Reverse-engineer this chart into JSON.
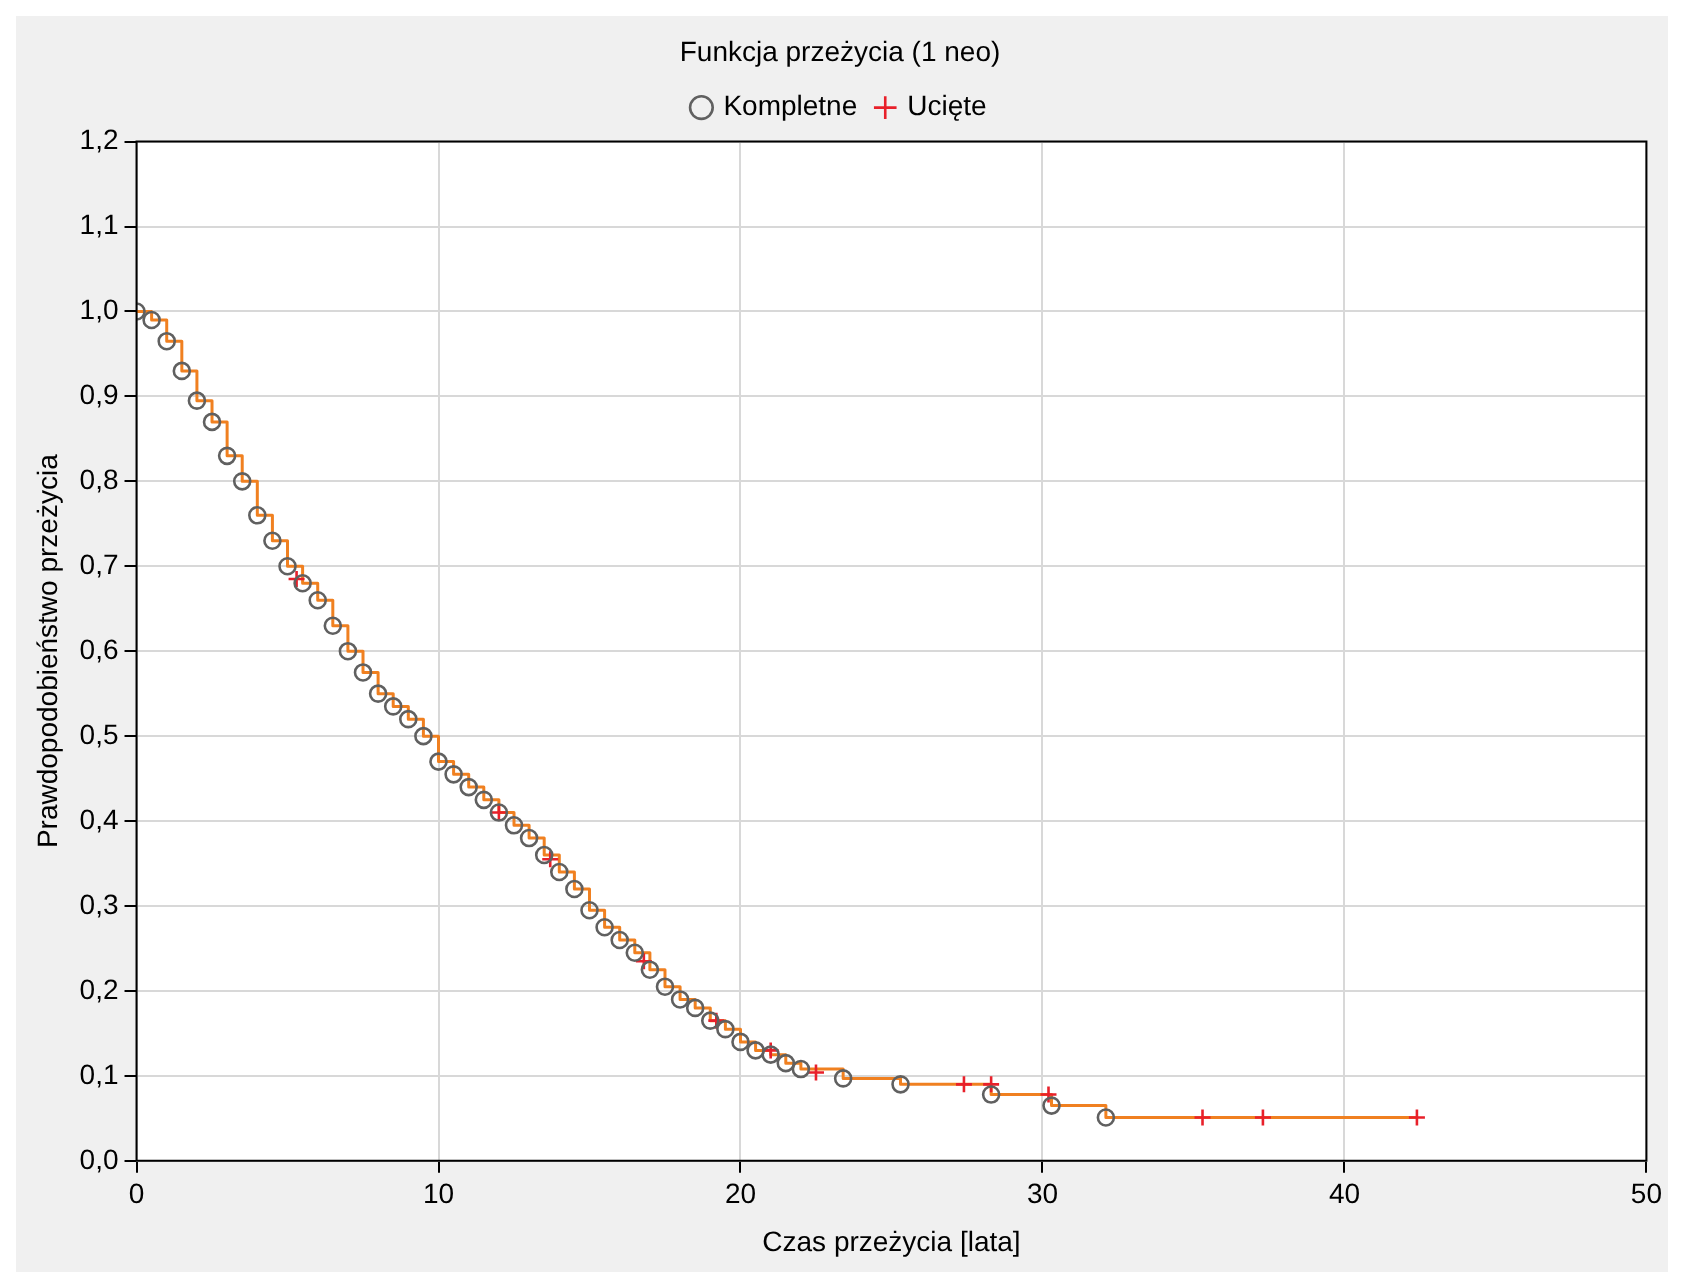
{
  "chart_data": {
    "type": "scatter",
    "title": "Funkcja przeżycia (1 neo)",
    "xlabel": "Czas przeżycia [lata]",
    "ylabel": "Prawdopodobieństwo przeżycia",
    "xlim": [
      0,
      50
    ],
    "xticks": [
      0,
      10,
      20,
      30,
      40,
      50
    ],
    "ylim": [
      0,
      1.2
    ],
    "yticks": [
      {
        "value": 0,
        "label": "0,0"
      },
      {
        "value": 0.1,
        "label": "0,1"
      },
      {
        "value": 0.2,
        "label": "0,2"
      },
      {
        "value": 0.3,
        "label": "0,3"
      },
      {
        "value": 0.4,
        "label": "0,4"
      },
      {
        "value": 0.5,
        "label": "0,5"
      },
      {
        "value": 0.6,
        "label": "0,6"
      },
      {
        "value": 0.7,
        "label": "0,7"
      },
      {
        "value": 0.8,
        "label": "0,8"
      },
      {
        "value": 0.9,
        "label": "0,9"
      },
      {
        "value": 1,
        "label": "1,0"
      },
      {
        "value": 1.1,
        "label": "1,1"
      },
      {
        "value": 1.2,
        "label": "1,2"
      }
    ],
    "grid": true,
    "legend": "top",
    "series": [
      {
        "type": "step",
        "color": "#f08020",
        "marker": "none",
        "x": [
          0,
          0.5,
          1,
          1.5,
          2,
          2.5,
          3,
          3.5,
          4,
          4.5,
          5,
          5.5,
          6,
          6.5,
          7,
          7.5,
          8,
          8.5,
          9,
          9.5,
          10,
          10.5,
          11,
          11.5,
          12,
          12.5,
          13,
          13.5,
          14,
          14.5,
          15,
          15.5,
          16,
          16.5,
          17,
          17.5,
          18,
          18.5,
          19,
          19.5,
          20,
          20.5,
          21,
          21.5,
          22,
          23.4,
          25.3,
          28.3,
          30.3,
          32.1,
          42.4
        ],
        "values": [
          1.0,
          0.99,
          0.965,
          0.93,
          0.895,
          0.87,
          0.83,
          0.8,
          0.76,
          0.73,
          0.7,
          0.68,
          0.66,
          0.63,
          0.6,
          0.575,
          0.55,
          0.535,
          0.52,
          0.5,
          0.47,
          0.455,
          0.44,
          0.425,
          0.41,
          0.395,
          0.38,
          0.36,
          0.34,
          0.32,
          0.295,
          0.275,
          0.26,
          0.245,
          0.225,
          0.205,
          0.19,
          0.18,
          0.165,
          0.155,
          0.14,
          0.13,
          0.125,
          0.115,
          0.108,
          0.097,
          0.09,
          0.078,
          0.065,
          0.051,
          0.051
        ]
      },
      {
        "name": "Kompletne",
        "color": "#606060",
        "marker": "circle",
        "x": [
          0,
          0.5,
          1,
          1.5,
          2,
          2.5,
          3,
          3.5,
          4,
          4.5,
          5,
          5.5,
          6,
          6.5,
          7,
          7.5,
          8,
          8.5,
          9,
          9.5,
          10,
          10.5,
          11,
          11.5,
          12,
          12.5,
          13,
          13.5,
          14,
          14.5,
          15,
          15.5,
          16,
          16.5,
          17,
          17.5,
          18,
          18.5,
          19,
          19.5,
          20,
          20.5,
          21,
          21.5,
          22,
          23.4,
          25.3,
          28.3,
          30.3,
          32.1
        ],
        "values": [
          1.0,
          0.99,
          0.965,
          0.93,
          0.895,
          0.87,
          0.83,
          0.8,
          0.76,
          0.73,
          0.7,
          0.68,
          0.66,
          0.63,
          0.6,
          0.575,
          0.55,
          0.535,
          0.52,
          0.5,
          0.47,
          0.455,
          0.44,
          0.425,
          0.41,
          0.395,
          0.38,
          0.36,
          0.34,
          0.32,
          0.295,
          0.275,
          0.26,
          0.245,
          0.225,
          0.205,
          0.19,
          0.18,
          0.165,
          0.155,
          0.14,
          0.13,
          0.125,
          0.115,
          0.108,
          0.097,
          0.09,
          0.078,
          0.065,
          0.051
        ]
      },
      {
        "name": "Ucięte",
        "color": "#e8202a",
        "marker": "cross",
        "x": [
          5.3,
          12,
          13.7,
          16.8,
          19.2,
          21,
          22.5,
          27.4,
          28.3,
          30.2,
          35.3,
          37.3,
          42.4
        ],
        "values": [
          0.685,
          0.41,
          0.355,
          0.235,
          0.165,
          0.13,
          0.104,
          0.09,
          0.09,
          0.078,
          0.051,
          0.051,
          0.051
        ]
      }
    ]
  }
}
